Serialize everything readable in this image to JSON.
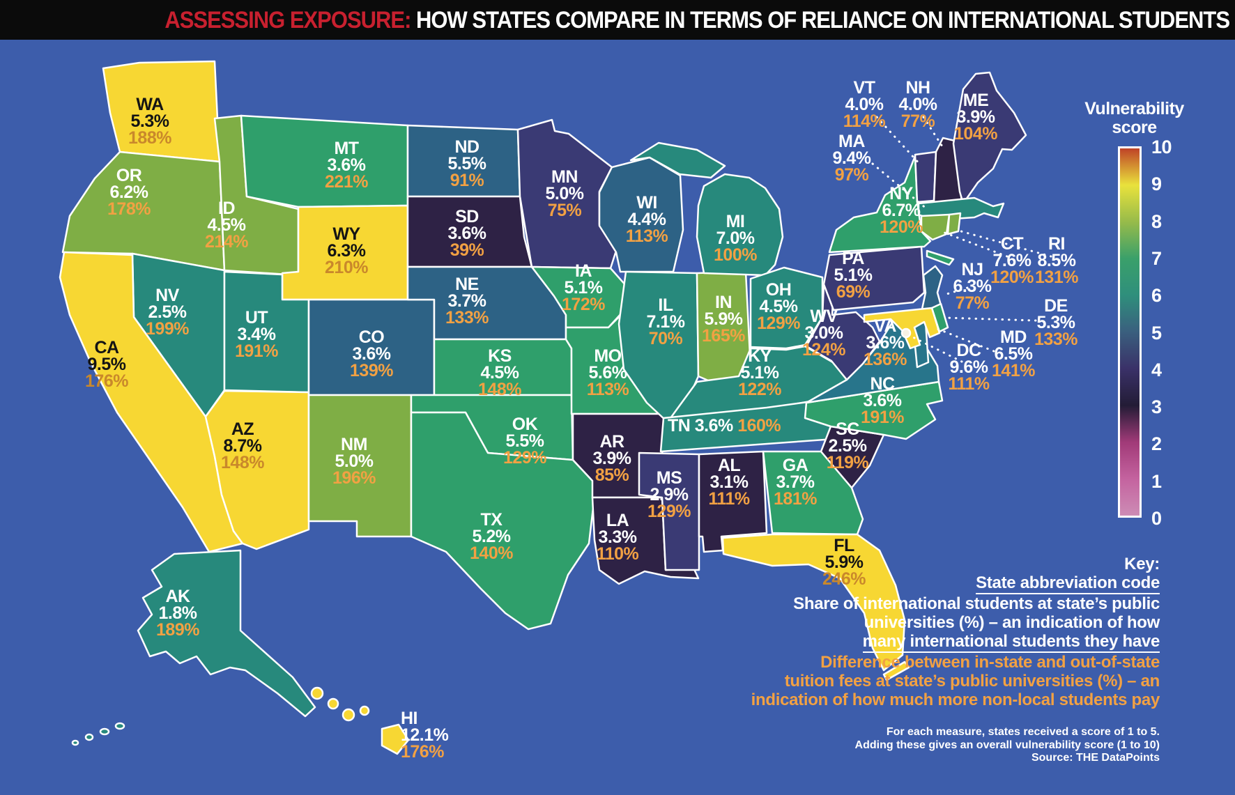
{
  "title": {
    "highlight": "ASSESSING EXPOSURE:",
    "rest": " HOW STATES COMPARE IN TERMS OF RELIANCE ON INTERNATIONAL STUDENTS"
  },
  "legend": {
    "title_line1": "Vulnerability",
    "title_line2": "score",
    "ticks": [
      "10",
      "9",
      "8",
      "7",
      "6",
      "5",
      "4",
      "3",
      "2",
      "1",
      "0"
    ]
  },
  "key": {
    "heading": "Key:",
    "abbr_label": "State abbreviation code",
    "share_lines": [
      "Share of international students at state’s public",
      "universities (%) – an indication of how",
      "many international students they have"
    ],
    "diff_lines": [
      "Difference between in-state and out-of-state",
      "tuition fees at state’s public universities (%) – an",
      "indication of how much more non-local students pay"
    ]
  },
  "footer": {
    "lines": [
      "For each measure, states received a score of 1 to 5.",
      "Adding these gives an overall vulnerability score (1 to 10)",
      "Source: THE DataPoints"
    ]
  },
  "colors": {
    "background": "#3d5dab",
    "header_bg": "#0b0b0b",
    "title_red": "#c8202f",
    "orange_bright": "#f2a143",
    "orange_on_yellow": "#c9882b",
    "border_white": "#ffffff",
    "dc_dot": "#f6f1e4",
    "tones": {
      "yellow": "#f7d733",
      "olive": "#7fae45",
      "green": "#2f9f6b",
      "teal": "#27897c",
      "tealblue": "#28758b",
      "steel": "#2d6285",
      "indigo": "#3a3a74",
      "plum": "#2e2245"
    }
  },
  "chart_data": {
    "type": "choropleth-map",
    "title": "Assessing exposure: how states compare in terms of reliance on international students",
    "value_scale": {
      "label": "Vulnerability score",
      "range": [
        0,
        10
      ]
    },
    "measures": [
      "share_of_international_students_pct",
      "tuition_fee_difference_pct"
    ],
    "states": [
      {
        "abbr": "WA",
        "share": "5.3%",
        "diff": "188%",
        "tone": "yellow"
      },
      {
        "abbr": "OR",
        "share": "6.2%",
        "diff": "178%",
        "tone": "olive"
      },
      {
        "abbr": "ID",
        "share": "4.5%",
        "diff": "214%",
        "tone": "olive"
      },
      {
        "abbr": "MT",
        "share": "3.6%",
        "diff": "221%",
        "tone": "green"
      },
      {
        "abbr": "WY",
        "share": "6.3%",
        "diff": "210%",
        "tone": "yellow"
      },
      {
        "abbr": "CA",
        "share": "9.5%",
        "diff": "176%",
        "tone": "yellow"
      },
      {
        "abbr": "NV",
        "share": "2.5%",
        "diff": "199%",
        "tone": "teal"
      },
      {
        "abbr": "UT",
        "share": "3.4%",
        "diff": "191%",
        "tone": "teal"
      },
      {
        "abbr": "AZ",
        "share": "8.7%",
        "diff": "148%",
        "tone": "yellow"
      },
      {
        "abbr": "NM",
        "share": "5.0%",
        "diff": "196%",
        "tone": "olive"
      },
      {
        "abbr": "CO",
        "share": "3.6%",
        "diff": "139%",
        "tone": "steel"
      },
      {
        "abbr": "ND",
        "share": "5.5%",
        "diff": "91%",
        "tone": "steel"
      },
      {
        "abbr": "SD",
        "share": "3.6%",
        "diff": "39%",
        "tone": "plum"
      },
      {
        "abbr": "NE",
        "share": "3.7%",
        "diff": "133%",
        "tone": "steel"
      },
      {
        "abbr": "KS",
        "share": "4.5%",
        "diff": "148%",
        "tone": "green"
      },
      {
        "abbr": "OK",
        "share": "5.5%",
        "diff": "129%",
        "tone": "green"
      },
      {
        "abbr": "TX",
        "share": "5.2%",
        "diff": "140%",
        "tone": "green"
      },
      {
        "abbr": "MN",
        "share": "5.0%",
        "diff": "75%",
        "tone": "indigo"
      },
      {
        "abbr": "IA",
        "share": "5.1%",
        "diff": "172%",
        "tone": "green"
      },
      {
        "abbr": "MO",
        "share": "5.6%",
        "diff": "113%",
        "tone": "green"
      },
      {
        "abbr": "AR",
        "share": "3.9%",
        "diff": "85%",
        "tone": "plum"
      },
      {
        "abbr": "LA",
        "share": "3.3%",
        "diff": "110%",
        "tone": "plum"
      },
      {
        "abbr": "WI",
        "share": "4.4%",
        "diff": "113%",
        "tone": "steel"
      },
      {
        "abbr": "IL",
        "share": "7.1%",
        "diff": "70%",
        "tone": "teal"
      },
      {
        "abbr": "IN",
        "share": "5.9%",
        "diff": "165%",
        "tone": "olive"
      },
      {
        "abbr": "MI",
        "share": "7.0%",
        "diff": "100%",
        "tone": "teal"
      },
      {
        "abbr": "OH",
        "share": "4.5%",
        "diff": "129%",
        "tone": "teal"
      },
      {
        "abbr": "KY",
        "share": "5.1%",
        "diff": "122%",
        "tone": "teal"
      },
      {
        "abbr": "TN",
        "share": "3.6%",
        "diff": "160%",
        "tone": "teal"
      },
      {
        "abbr": "MS",
        "share": "2.9%",
        "diff": "129%",
        "tone": "indigo"
      },
      {
        "abbr": "AL",
        "share": "3.1%",
        "diff": "111%",
        "tone": "plum"
      },
      {
        "abbr": "GA",
        "share": "3.7%",
        "diff": "181%",
        "tone": "green"
      },
      {
        "abbr": "FL",
        "share": "5.9%",
        "diff": "246%",
        "tone": "yellow"
      },
      {
        "abbr": "SC",
        "share": "2.5%",
        "diff": "119%",
        "tone": "plum"
      },
      {
        "abbr": "NC",
        "share": "3.6%",
        "diff": "191%",
        "tone": "green"
      },
      {
        "abbr": "VA",
        "share": "3.6%",
        "diff": "136%",
        "tone": "tealblue"
      },
      {
        "abbr": "WV",
        "share": "3.0%",
        "diff": "124%",
        "tone": "indigo"
      },
      {
        "abbr": "PA",
        "share": "5.1%",
        "diff": "69%",
        "tone": "indigo"
      },
      {
        "abbr": "NY",
        "share": "6.7%",
        "diff": "120%",
        "tone": "green"
      },
      {
        "abbr": "NJ",
        "share": "6.3%",
        "diff": "77%",
        "tone": "steel"
      },
      {
        "abbr": "DE",
        "share": "5.3%",
        "diff": "133%",
        "tone": "green"
      },
      {
        "abbr": "MD",
        "share": "6.5%",
        "diff": "141%",
        "tone": "yellow"
      },
      {
        "abbr": "DC",
        "share": "9.6%",
        "diff": "111%",
        "tone": "dot"
      },
      {
        "abbr": "VT",
        "share": "4.0%",
        "diff": "114%",
        "tone": "indigo"
      },
      {
        "abbr": "NH",
        "share": "4.0%",
        "diff": "77%",
        "tone": "plum"
      },
      {
        "abbr": "MA",
        "share": "9.4%",
        "diff": "97%",
        "tone": "teal"
      },
      {
        "abbr": "CT",
        "share": "7.6%",
        "diff": "120%",
        "tone": "olive"
      },
      {
        "abbr": "RI",
        "share": "8.5%",
        "diff": "131%",
        "tone": "olive"
      },
      {
        "abbr": "ME",
        "share": "3.9%",
        "diff": "104%",
        "tone": "indigo"
      },
      {
        "abbr": "AK",
        "share": "1.8%",
        "diff": "189%",
        "tone": "teal"
      },
      {
        "abbr": "HI",
        "share": "12.1%",
        "diff": "176%",
        "tone": "yellow"
      }
    ]
  }
}
